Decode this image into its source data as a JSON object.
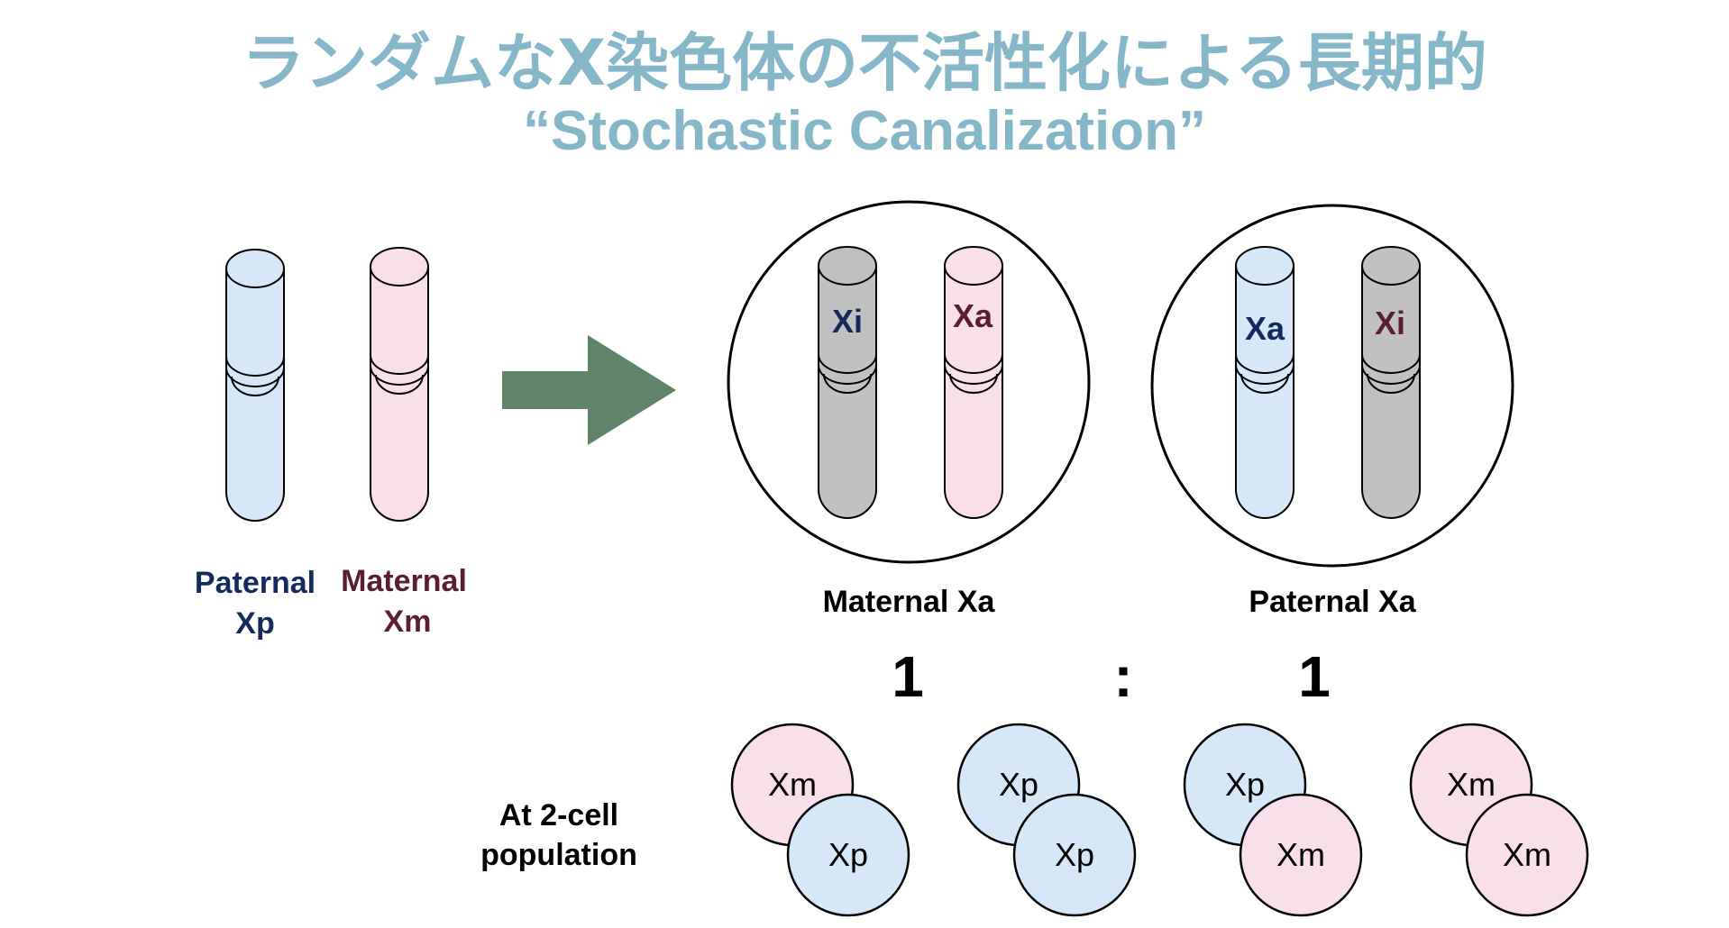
{
  "title": {
    "line1": "ランダムなX染色体の不活性化による長期的",
    "line2": "“Stochastic Canalization”"
  },
  "colors": {
    "title": "#86b7c8",
    "paternal_fill": "#d6e8f8",
    "maternal_fill": "#f8dfea",
    "inactive_fill": "#c1c1c1",
    "arrow": "#5f8469",
    "paternal_text": "#142a5e",
    "maternal_text": "#5a1e34"
  },
  "left": {
    "paternal_label": "Paternal",
    "paternal_sub": "Xp",
    "maternal_label": "Maternal",
    "maternal_sub": "Xm"
  },
  "cell_maternal_xa": {
    "chrom_left_tag": "Xi",
    "chrom_right_tag": "Xa",
    "caption": "Maternal Xa"
  },
  "cell_paternal_xa": {
    "chrom_left_tag": "Xa",
    "chrom_right_tag": "Xi",
    "caption": "Paternal Xa"
  },
  "ratio": {
    "left": "1",
    "sep": ":",
    "right": "1"
  },
  "population": {
    "label_line1": "At 2-cell",
    "label_line2": "population",
    "pairs": [
      {
        "back": "Xm",
        "front": "Xp"
      },
      {
        "back": "Xp",
        "front": "Xp"
      },
      {
        "back": "Xp",
        "front": "Xm"
      },
      {
        "back": "Xm",
        "front": "Xm"
      }
    ]
  }
}
